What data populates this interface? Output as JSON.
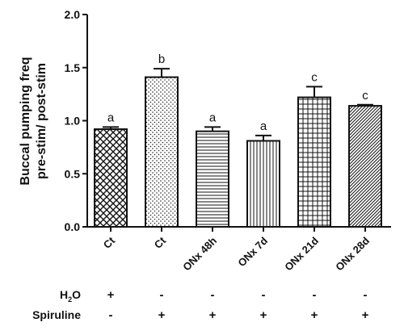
{
  "chart_data": {
    "type": "bar",
    "ylabel_lines": [
      "Buccal pumping freq",
      "pre-stim/ post-stim"
    ],
    "ylim": [
      0,
      2.0
    ],
    "yticks": [
      "0.0",
      "0.5",
      "1.0",
      "1.5",
      "2.0"
    ],
    "categories": [
      "Ct",
      "Ct",
      "ONx 48h",
      "ONx 7d",
      "ONx 21d",
      "ONx 28d"
    ],
    "values": [
      0.92,
      1.41,
      0.9,
      0.81,
      1.22,
      1.14
    ],
    "errors": [
      0.02,
      0.08,
      0.04,
      0.05,
      0.1,
      0.01
    ],
    "significance": [
      "a",
      "b",
      "a",
      "a",
      "c",
      "c"
    ],
    "patterns": [
      "crosshatch-diagonal",
      "dots",
      "horizontal-lines",
      "vertical-lines",
      "grid",
      "diagonal-lines"
    ],
    "treatment_table": {
      "rows": [
        {
          "label_main": "H",
          "label_sub": "2",
          "label_tail": "O",
          "signs": [
            "+",
            "-",
            "-",
            "-",
            "-",
            "-"
          ]
        },
        {
          "label_main": "Spiruline",
          "label_sub": "",
          "label_tail": "",
          "signs": [
            "-",
            "+",
            "+",
            "+",
            "+",
            "+"
          ]
        }
      ]
    },
    "colors": {
      "bar_stroke": "#111111",
      "pattern": "#111111",
      "background": "#ffffff"
    }
  }
}
